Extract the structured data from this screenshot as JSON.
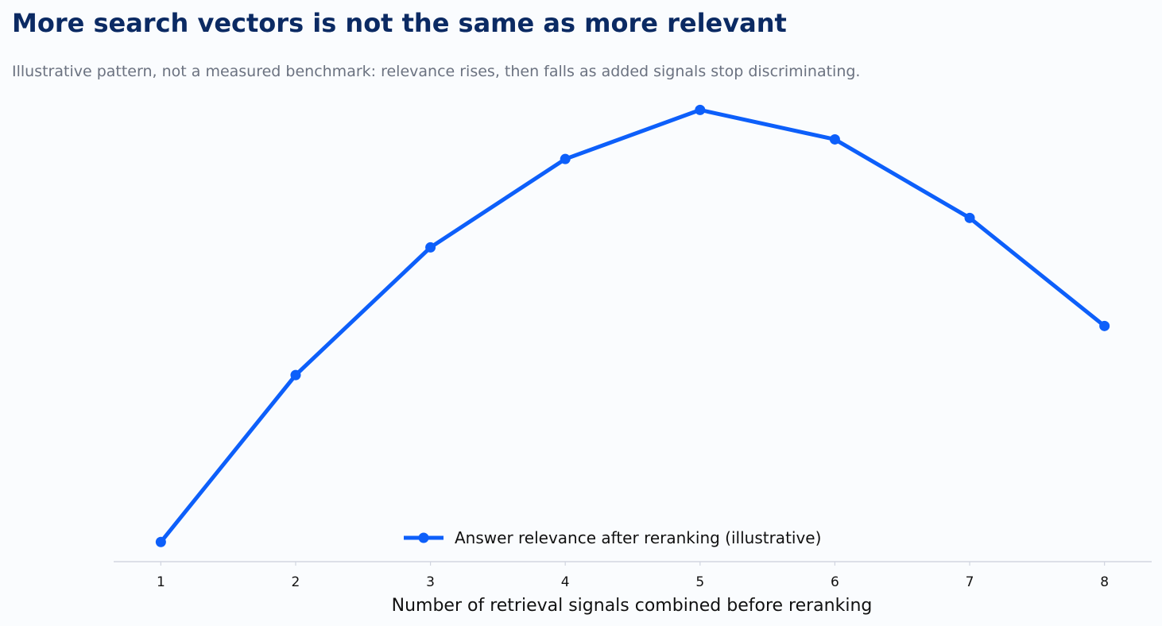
{
  "chart_data": {
    "type": "line",
    "title": "More search vectors is not the same as more relevant",
    "subtitle": "Illustrative pattern, not a measured benchmark: relevance rises, then falls as added signals stop discriminating.",
    "xlabel": "Number of retrieval signals combined before reranking",
    "ylabel": "",
    "x": [
      1,
      2,
      3,
      4,
      5,
      6,
      7,
      8
    ],
    "series": [
      {
        "name": "Answer relevance after reranking (illustrative)",
        "values": [
          0.41,
          0.58,
          0.71,
          0.8,
          0.85,
          0.82,
          0.74,
          0.63
        ]
      }
    ],
    "xlim": [
      0.65,
      8.35
    ],
    "ylim": [
      0.39,
      0.86
    ],
    "grid": false,
    "y_axis_visible": false,
    "legend_position": "bottom-center",
    "colors": {
      "series": "#0d5ffa",
      "title": "#0b2a63",
      "subtitle": "#6b7280",
      "axis": "#d1d5e0",
      "background": "#fafcfe"
    }
  }
}
